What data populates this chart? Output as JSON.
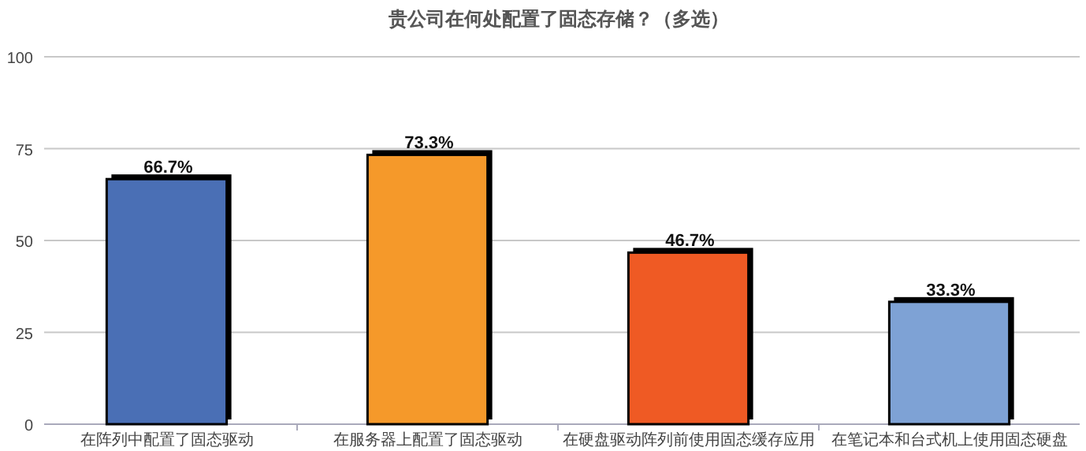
{
  "chart_data": {
    "type": "bar",
    "title": "贵公司在何处配置了固态存储？（多选）",
    "categories": [
      "在阵列中配置了固态驱动",
      "在服务器上配置了固态驱动",
      "在硬盘驱动阵列前使用固态缓存应用",
      "在笔记本和台式机上使用固态硬盘"
    ],
    "values": [
      66.7,
      73.3,
      46.7,
      33.3
    ],
    "colors": [
      "#4a6fb5",
      "#f5992a",
      "#ef5a24",
      "#7ea2d5"
    ],
    "value_labels": [
      "66.7%",
      "73.3%",
      "46.7%",
      "33.3%"
    ],
    "ylim": [
      0,
      100
    ],
    "yticks": [
      0,
      25,
      50,
      75,
      100
    ],
    "grid": "y"
  }
}
